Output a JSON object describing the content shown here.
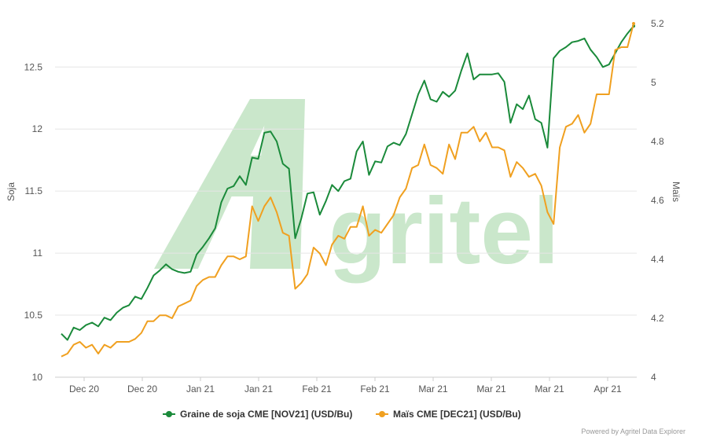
{
  "chart_data": {
    "type": "line",
    "x_tick_labels": [
      "Dec 20",
      "Dec 20",
      "Jan 21",
      "Jan 21",
      "Feb 21",
      "Feb 21",
      "Mar 21",
      "Mar 21",
      "Mar 21",
      "Apr 21"
    ],
    "y_left": {
      "label": "Soja",
      "range": [
        10,
        12.85
      ],
      "ticks": [
        "10",
        "10.5",
        "11",
        "11.5",
        "12",
        "12.5"
      ]
    },
    "y_right": {
      "label": "Maïs",
      "range": [
        4,
        5.2
      ],
      "ticks": [
        "4",
        "4.2",
        "4.4",
        "4.6",
        "4.8",
        "5",
        "5.2"
      ]
    },
    "grid": "horizontal",
    "legend_position": "bottom-center",
    "series": [
      {
        "name": "Graine de soja CME [NOV21] (USD/Bu)",
        "color": "#1a8a3a",
        "axis": "left",
        "values": [
          10.35,
          10.3,
          10.4,
          10.38,
          10.42,
          10.44,
          10.41,
          10.48,
          10.46,
          10.52,
          10.56,
          10.58,
          10.65,
          10.63,
          10.72,
          10.82,
          10.86,
          10.91,
          10.87,
          10.85,
          10.84,
          10.85,
          10.99,
          11.05,
          11.12,
          11.2,
          11.41,
          11.52,
          11.54,
          11.62,
          11.55,
          11.77,
          11.76,
          11.97,
          11.98,
          11.9,
          11.72,
          11.68,
          11.12,
          11.28,
          11.48,
          11.49,
          11.31,
          11.42,
          11.55,
          11.5,
          11.58,
          11.6,
          11.82,
          11.9,
          11.63,
          11.74,
          11.73,
          11.86,
          11.89,
          11.87,
          11.96,
          12.12,
          12.28,
          12.39,
          12.24,
          12.22,
          12.3,
          12.26,
          12.31,
          12.47,
          12.61,
          12.4,
          12.44,
          12.44,
          12.44,
          12.45,
          12.38,
          12.05,
          12.2,
          12.16,
          12.27,
          12.08,
          12.05,
          11.85,
          12.57,
          12.63,
          12.66,
          12.7,
          12.71,
          12.73,
          12.64,
          12.58,
          12.5,
          12.52,
          12.61,
          12.7,
          12.77,
          12.83
        ]
      },
      {
        "name": "Maïs CME [DEC21] (USD/Bu)",
        "color": "#f0a020",
        "axis": "right",
        "values": [
          4.07,
          4.08,
          4.11,
          4.12,
          4.1,
          4.11,
          4.08,
          4.11,
          4.1,
          4.12,
          4.12,
          4.12,
          4.13,
          4.15,
          4.19,
          4.19,
          4.21,
          4.21,
          4.2,
          4.24,
          4.25,
          4.26,
          4.31,
          4.33,
          4.34,
          4.34,
          4.38,
          4.41,
          4.41,
          4.4,
          4.41,
          4.58,
          4.53,
          4.58,
          4.61,
          4.56,
          4.49,
          4.48,
          4.3,
          4.32,
          4.35,
          4.44,
          4.42,
          4.38,
          4.45,
          4.48,
          4.47,
          4.51,
          4.51,
          4.58,
          4.48,
          4.5,
          4.49,
          4.52,
          4.55,
          4.61,
          4.64,
          4.71,
          4.72,
          4.79,
          4.72,
          4.71,
          4.69,
          4.79,
          4.74,
          4.83,
          4.83,
          4.85,
          4.8,
          4.83,
          4.78,
          4.78,
          4.77,
          4.68,
          4.73,
          4.71,
          4.68,
          4.69,
          4.65,
          4.56,
          4.52,
          4.78,
          4.85,
          4.86,
          4.89,
          4.83,
          4.86,
          4.96,
          4.96,
          4.96,
          5.11,
          5.12,
          5.12,
          5.2
        ]
      }
    ]
  },
  "watermark": {
    "text": "gritel",
    "color": "#c8e6c9"
  },
  "credit": "Powered by Agritel Data Explorer"
}
